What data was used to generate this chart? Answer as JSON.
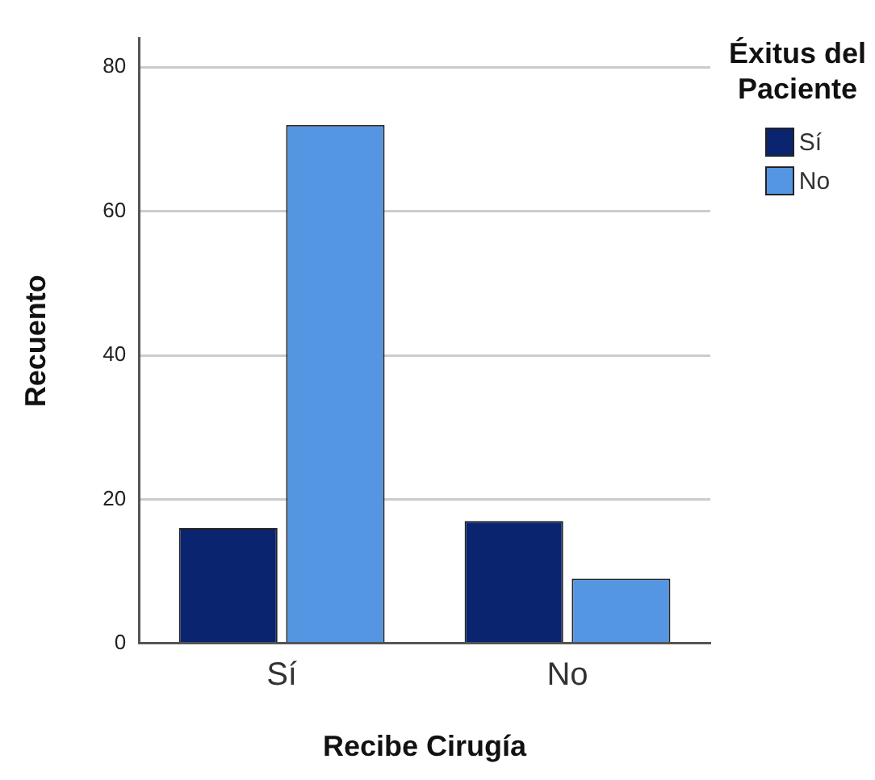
{
  "chart_data": {
    "type": "bar",
    "xlabel": "Recibe Cirugía",
    "ylabel": "Recuento",
    "legend_title": "Éxitus del Paciente",
    "categories": [
      "Sí",
      "No"
    ],
    "series": [
      {
        "name": "Sí",
        "color": "#0b2470",
        "values": [
          16,
          17
        ]
      },
      {
        "name": "No",
        "color": "#5596e3",
        "values": [
          72,
          9
        ]
      }
    ],
    "ylim": [
      0,
      84
    ],
    "yticks": [
      0,
      20,
      40,
      60,
      80
    ],
    "grid": "y",
    "legend": "top right"
  }
}
